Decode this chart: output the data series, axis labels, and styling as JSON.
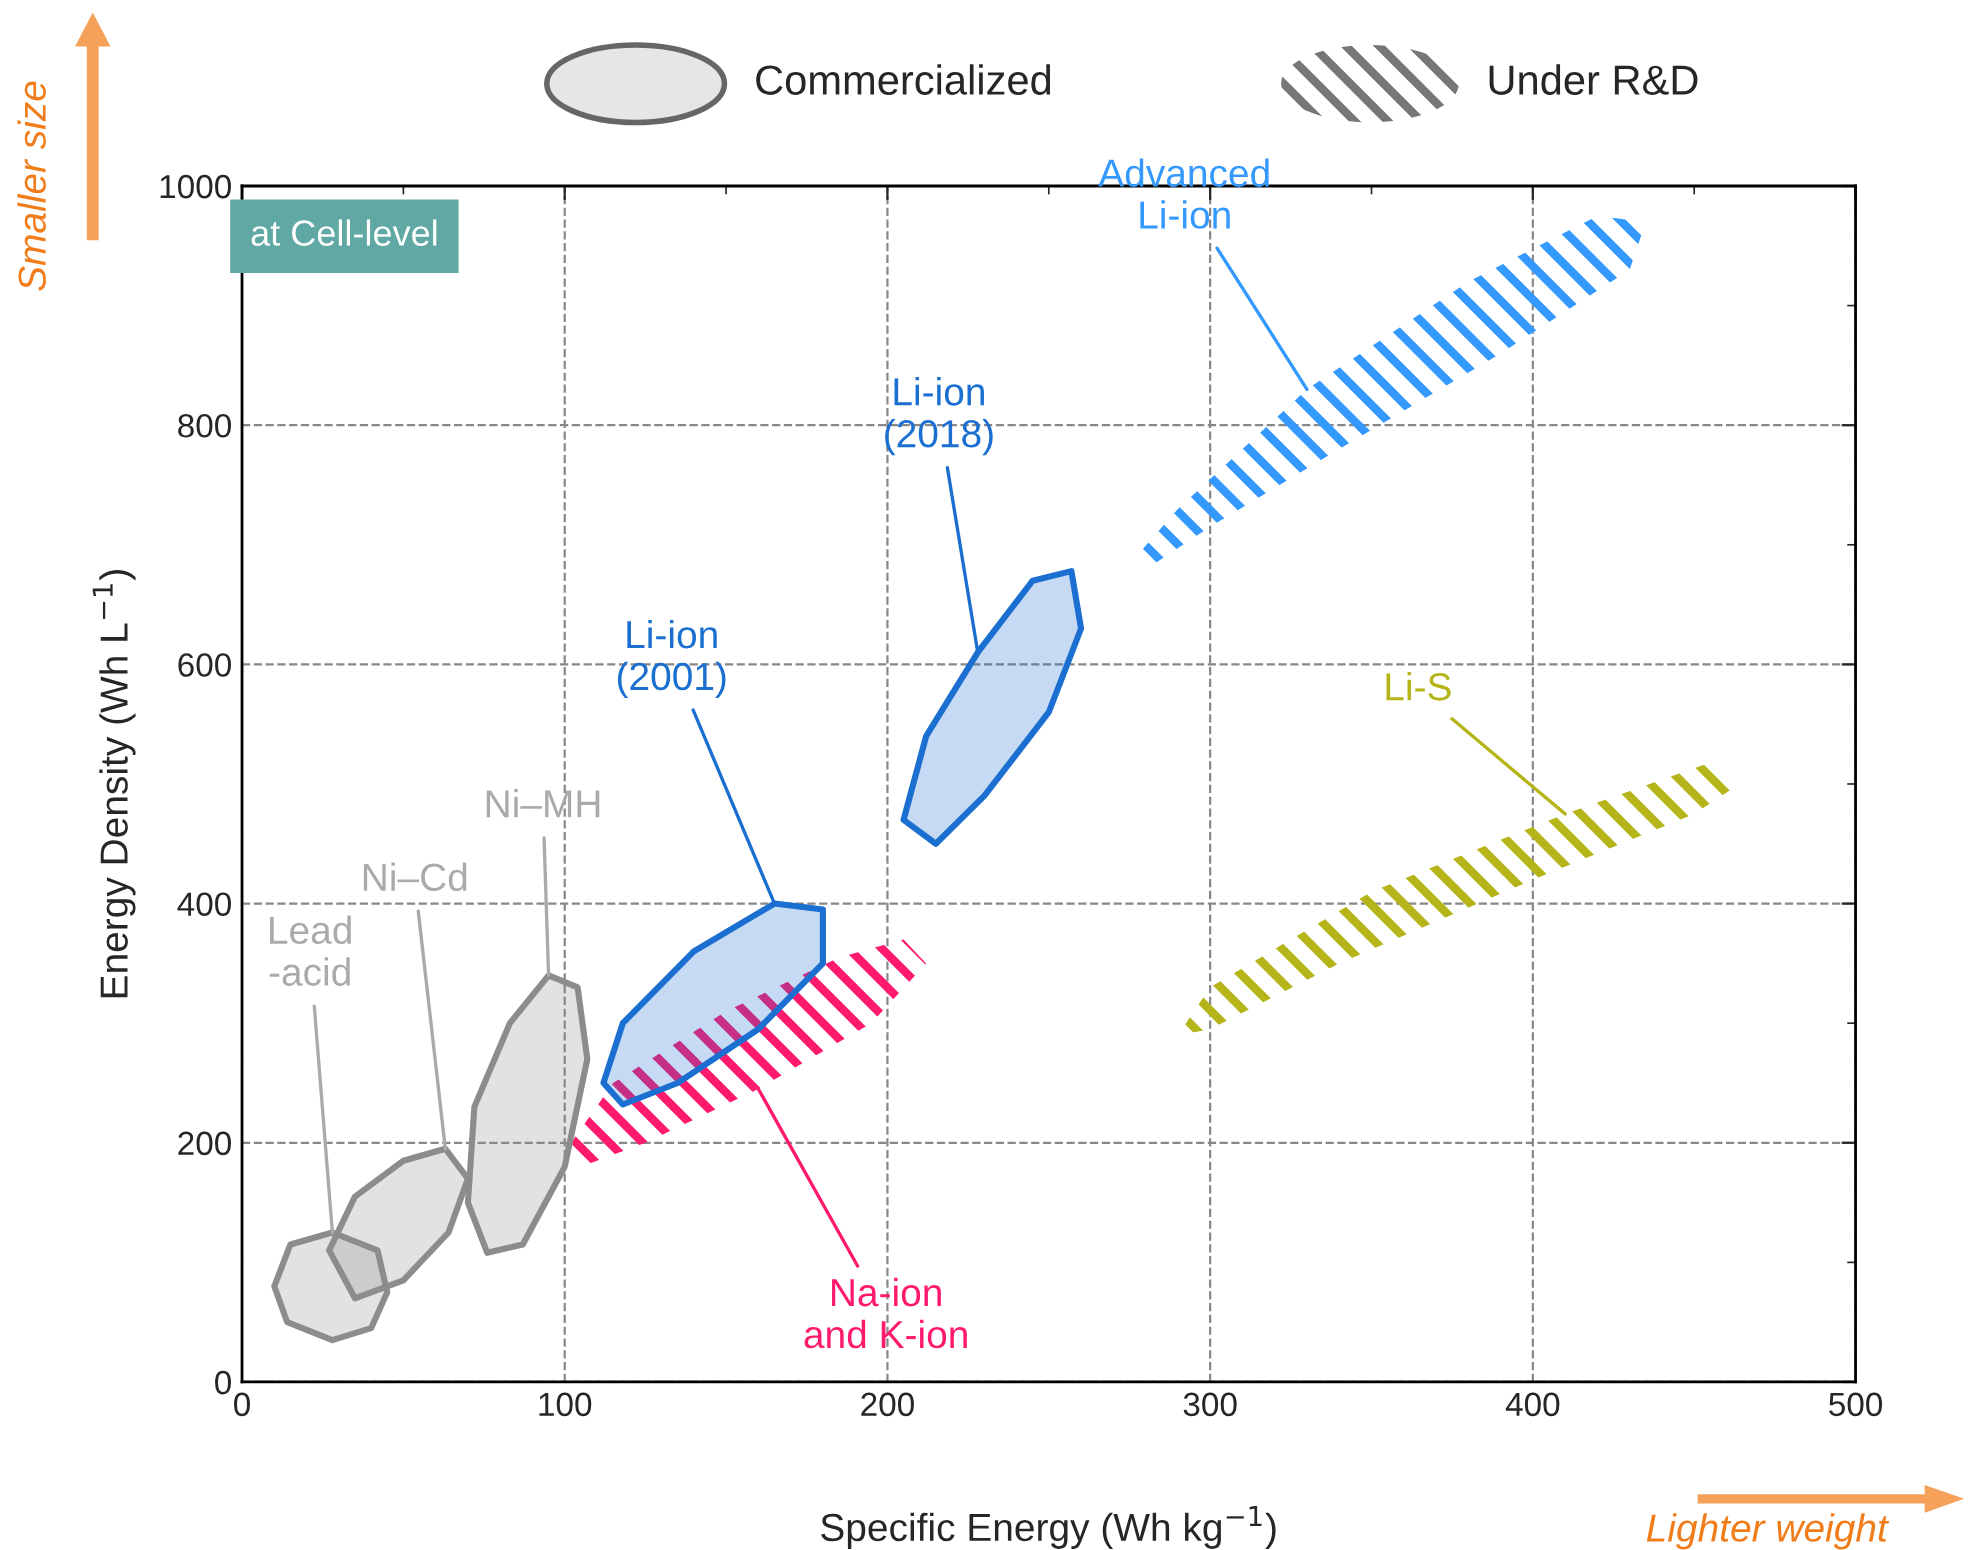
{
  "chart_data": {
    "type": "area",
    "xlabel": "Specific Energy (Wh kg$^{−1}$)",
    "ylabel": "Energy Density (Wh L$^{−1}$)",
    "xlim": [
      0,
      500
    ],
    "ylim": [
      0,
      1000
    ],
    "xticks": [
      0,
      100,
      200,
      300,
      400,
      500
    ],
    "yticks": [
      0,
      200,
      400,
      600,
      800,
      1000
    ],
    "grid": true,
    "series": [
      {
        "name": "Lead\n-acid",
        "color": "#8c8c8c",
        "line_style": "solid",
        "x": [
          10,
          15,
          28,
          42,
          45,
          40,
          28,
          14,
          10
        ],
        "values": [
          80,
          115,
          125,
          110,
          75,
          45,
          35,
          50,
          80
        ]
      },
      {
        "name": "Ni–Cd",
        "color": "#8c8c8c",
        "line_style": "solid",
        "x": [
          27,
          35,
          50,
          63,
          70,
          64,
          50,
          35,
          27
        ],
        "values": [
          110,
          155,
          185,
          195,
          170,
          125,
          85,
          70,
          110
        ]
      },
      {
        "name": "Ni–MH",
        "color": "#8c8c8c",
        "line_style": "solid",
        "x": [
          70,
          72,
          83,
          95,
          104,
          107,
          100,
          87,
          76,
          70
        ],
        "values": [
          150,
          230,
          300,
          340,
          330,
          270,
          180,
          115,
          108,
          150
        ]
      },
      {
        "name": "Li-ion\n(2001)",
        "color": "#1a6fd0",
        "line_style": "solid",
        "x": [
          112,
          118,
          140,
          165,
          180,
          180,
          160,
          135,
          118,
          112
        ],
        "values": [
          250,
          300,
          360,
          400,
          395,
          350,
          295,
          250,
          232,
          250
        ]
      },
      {
        "name": "Na-ion\nand K-ion",
        "color": "#ff1a6e",
        "line_style": "dashed",
        "x": [
          102,
          115,
          150,
          185,
          205,
          212,
          195,
          160,
          125,
          105,
          102
        ],
        "values": [
          200,
          250,
          310,
          355,
          370,
          350,
          300,
          245,
          200,
          180,
          200
        ]
      },
      {
        "name": "Li-ion\n(2018)",
        "color": "#1a6fd0",
        "line_style": "solid",
        "x": [
          205,
          212,
          228,
          245,
          257,
          260,
          250,
          230,
          215,
          205
        ],
        "values": [
          470,
          540,
          610,
          670,
          678,
          630,
          560,
          490,
          450,
          470
        ]
      },
      {
        "name": "Advanced\nLi-ion",
        "color": "#3399ff",
        "line_style": "dashed",
        "x": [
          277,
          290,
          330,
          380,
          420,
          435,
          430,
          390,
          340,
          300,
          282,
          277
        ],
        "values": [
          690,
          730,
          830,
          920,
          975,
          970,
          930,
          860,
          780,
          715,
          683,
          690
        ]
      },
      {
        "name": "Li-S",
        "color": "#b5b51a",
        "line_style": "dashed",
        "x": [
          290,
          300,
          350,
          410,
          455,
          464,
          450,
          400,
          340,
          300,
          290
        ],
        "values": [
          290,
          330,
          410,
          475,
          518,
          500,
          475,
          420,
          350,
          295,
          290
        ]
      }
    ],
    "annotations": [
      "at Cell-level",
      "Commercialized",
      "Under R&D",
      "Smaller size",
      "Lighter weight"
    ]
  }
}
